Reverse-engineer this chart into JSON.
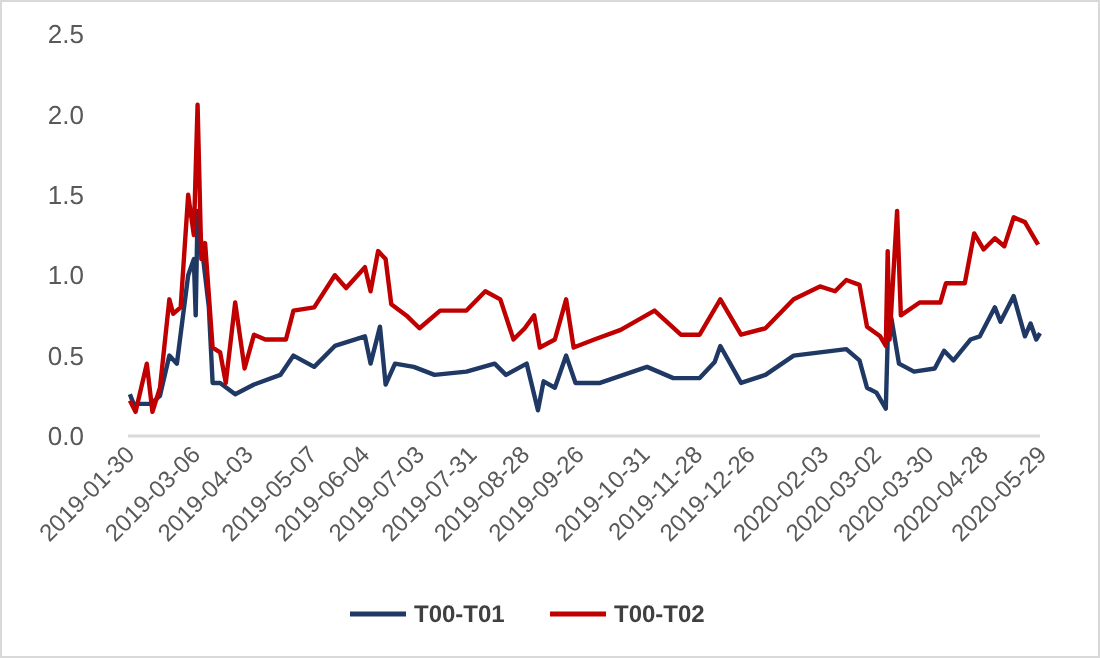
{
  "chart_data": {
    "type": "line",
    "xlim": [
      "2019-01-30",
      "2020-05-29"
    ],
    "xticks": [
      "2019-01-30",
      "2019-03-06",
      "2019-04-03",
      "2019-05-07",
      "2019-06-04",
      "2019-07-03",
      "2019-07-31",
      "2019-08-28",
      "2019-09-26",
      "2019-10-31",
      "2019-11-28",
      "2019-12-26",
      "2020-02-03",
      "2020-03-02",
      "2020-03-30",
      "2020-04-28",
      "2020-05-29"
    ],
    "ylim": [
      0,
      2.5
    ],
    "yticks": [
      {
        "value": 0,
        "label": "0.0"
      },
      {
        "value": 0.5,
        "label": "0.5"
      },
      {
        "value": 1,
        "label": "1.0"
      },
      {
        "value": 1.5,
        "label": "1.5"
      },
      {
        "value": 2,
        "label": "2.0"
      },
      {
        "value": 2.5,
        "label": "2.5"
      }
    ],
    "grid": false,
    "legend": "bottom",
    "line_style": "solid",
    "marker": "none",
    "series": [
      {
        "name": "T00-T01",
        "color": "#1f3864",
        "x": [
          "2019-01-31",
          "2019-02-02",
          "2019-02-11",
          "2019-02-16",
          "2019-02-21",
          "2019-02-25",
          "2019-03-03",
          "2019-03-06",
          "2019-03-07",
          "2019-03-08",
          "2019-03-11",
          "2019-03-14",
          "2019-03-16",
          "2019-03-20",
          "2019-03-28",
          "2019-04-07",
          "2019-04-21",
          "2019-04-28",
          "2019-05-09",
          "2019-05-20",
          "2019-06-05",
          "2019-06-08",
          "2019-06-13",
          "2019-06-16",
          "2019-06-21",
          "2019-07-01",
          "2019-07-12",
          "2019-07-29",
          "2019-08-13",
          "2019-08-19",
          "2019-08-30",
          "2019-09-05",
          "2019-09-08",
          "2019-09-14",
          "2019-09-20",
          "2019-09-25",
          "2019-10-08",
          "2019-11-02",
          "2019-11-16",
          "2019-11-30",
          "2019-12-08",
          "2019-12-11",
          "2019-12-22",
          "2020-01-04",
          "2020-01-19",
          "2020-02-02",
          "2020-02-16",
          "2020-02-23",
          "2020-02-27",
          "2020-03-03",
          "2020-03-08",
          "2020-03-09",
          "2020-03-11",
          "2020-03-15",
          "2020-03-23",
          "2020-04-03",
          "2020-04-08",
          "2020-04-13",
          "2020-04-22",
          "2020-04-27",
          "2020-05-05",
          "2020-05-08",
          "2020-05-15",
          "2020-05-21",
          "2020-05-24",
          "2020-05-27",
          "2020-05-29"
        ],
        "values": [
          0.26,
          0.2,
          0.2,
          0.25,
          0.5,
          0.45,
          1.0,
          1.1,
          0.75,
          1.4,
          1.1,
          0.8,
          0.33,
          0.33,
          0.26,
          0.32,
          0.38,
          0.5,
          0.43,
          0.56,
          0.62,
          0.45,
          0.68,
          0.32,
          0.45,
          0.43,
          0.38,
          0.4,
          0.45,
          0.38,
          0.45,
          0.16,
          0.34,
          0.3,
          0.5,
          0.33,
          0.33,
          0.43,
          0.36,
          0.36,
          0.46,
          0.56,
          0.33,
          0.38,
          0.5,
          0.52,
          0.54,
          0.47,
          0.3,
          0.27,
          0.17,
          0.6,
          0.73,
          0.45,
          0.4,
          0.42,
          0.53,
          0.47,
          0.6,
          0.62,
          0.8,
          0.71,
          0.87,
          0.62,
          0.7,
          0.6,
          0.64
        ]
      },
      {
        "name": "T00-T02",
        "color": "#c00000",
        "x": [
          "2019-01-31",
          "2019-02-03",
          "2019-02-09",
          "2019-02-12",
          "2019-02-16",
          "2019-02-21",
          "2019-02-23",
          "2019-02-27",
          "2019-03-03",
          "2019-03-06",
          "2019-03-08",
          "2019-03-10",
          "2019-03-12",
          "2019-03-16",
          "2019-03-20",
          "2019-03-23",
          "2019-03-28",
          "2019-04-02",
          "2019-04-07",
          "2019-04-13",
          "2019-04-24",
          "2019-04-28",
          "2019-05-09",
          "2019-05-20",
          "2019-05-26",
          "2019-06-05",
          "2019-06-08",
          "2019-06-12",
          "2019-06-16",
          "2019-06-19",
          "2019-06-27",
          "2019-07-04",
          "2019-07-15",
          "2019-07-29",
          "2019-08-08",
          "2019-08-16",
          "2019-08-23",
          "2019-08-29",
          "2019-09-03",
          "2019-09-06",
          "2019-09-14",
          "2019-09-20",
          "2019-09-24",
          "2019-10-05",
          "2019-10-19",
          "2019-11-06",
          "2019-11-20",
          "2019-11-30",
          "2019-12-11",
          "2019-12-22",
          "2020-01-04",
          "2020-01-19",
          "2020-02-02",
          "2020-02-10",
          "2020-02-16",
          "2020-02-23",
          "2020-02-27",
          "2020-03-05",
          "2020-03-08",
          "2020-03-09",
          "2020-03-10",
          "2020-03-14",
          "2020-03-16",
          "2020-03-26",
          "2020-04-06",
          "2020-04-09",
          "2020-04-19",
          "2020-04-24",
          "2020-04-29",
          "2020-05-05",
          "2020-05-10",
          "2020-05-15",
          "2020-05-21",
          "2020-05-24",
          "2020-05-28"
        ],
        "values": [
          0.22,
          0.15,
          0.45,
          0.15,
          0.3,
          0.85,
          0.76,
          0.8,
          1.5,
          1.25,
          2.06,
          1.1,
          1.2,
          0.55,
          0.52,
          0.33,
          0.83,
          0.42,
          0.63,
          0.6,
          0.6,
          0.78,
          0.8,
          1.0,
          0.92,
          1.05,
          0.9,
          1.15,
          1.1,
          0.82,
          0.75,
          0.67,
          0.78,
          0.78,
          0.9,
          0.85,
          0.6,
          0.67,
          0.75,
          0.55,
          0.6,
          0.85,
          0.55,
          0.6,
          0.66,
          0.78,
          0.63,
          0.63,
          0.85,
          0.63,
          0.67,
          0.85,
          0.93,
          0.9,
          0.97,
          0.94,
          0.68,
          0.62,
          0.56,
          1.15,
          0.6,
          1.4,
          0.75,
          0.83,
          0.83,
          0.95,
          0.95,
          1.26,
          1.16,
          1.23,
          1.18,
          1.36,
          1.33,
          1.27,
          1.19
        ]
      }
    ]
  }
}
